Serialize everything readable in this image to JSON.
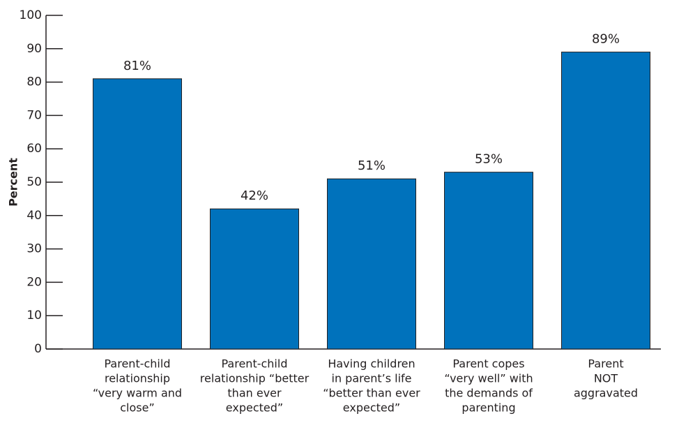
{
  "chart_data": {
    "type": "bar",
    "y_label": "Percent",
    "categories": [
      [
        "Parent-child",
        "relationship",
        "“very warm and",
        "close”"
      ],
      [
        "Parent-child",
        "relationship “better",
        "than ever",
        "expected”"
      ],
      [
        "Having children",
        "in parent’s life",
        "“better than ever",
        "expected”"
      ],
      [
        "Parent copes",
        "“very well” with",
        "the demands of",
        "parenting"
      ],
      [
        "Parent",
        "NOT",
        "aggravated"
      ]
    ],
    "values": [
      81,
      42,
      51,
      53,
      89
    ],
    "value_labels": [
      "81%",
      "42%",
      "51%",
      "53%",
      "89%"
    ],
    "color": "#0072bc",
    "ylim": [
      0,
      100
    ],
    "yticks": [
      0,
      10,
      20,
      30,
      40,
      50,
      60,
      70,
      80,
      90,
      100
    ]
  }
}
